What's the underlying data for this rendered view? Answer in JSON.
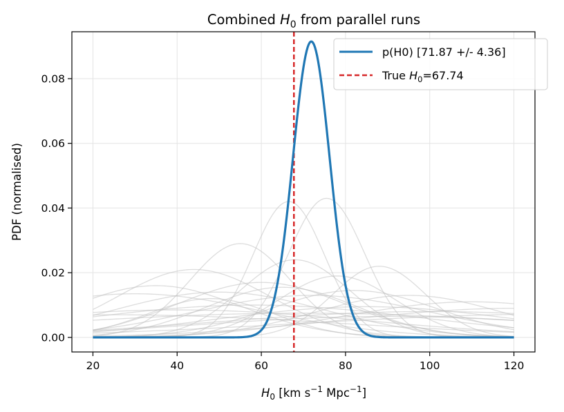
{
  "chart_data": {
    "type": "line",
    "title_main": "Combined ",
    "title_symbol": "H",
    "title_sub": "0",
    "title_rest": " from parallel runs",
    "xlabel": {
      "symbol": "H",
      "sub": "0",
      "unit_a": " [km s",
      "exp_a": "−1",
      "unit_b": " Mpc",
      "exp_b": "−1",
      "unit_c": "]"
    },
    "ylabel": "PDF (normalised)",
    "xlim": [
      15,
      125
    ],
    "ylim": [
      -0.0045,
      0.0945
    ],
    "x_ticks": [
      20,
      40,
      60,
      80,
      100,
      120
    ],
    "x_tick_labels": [
      "20",
      "40",
      "60",
      "80",
      "100",
      "120"
    ],
    "y_ticks": [
      0.0,
      0.02,
      0.04,
      0.06,
      0.08
    ],
    "y_tick_labels": [
      "0.00",
      "0.02",
      "0.04",
      "0.06",
      "0.08"
    ],
    "grid": true,
    "legend_position": "top-right",
    "combined": {
      "name": "p(H0) [71.87 +/- 4.36]",
      "mean": 71.87,
      "sigma": 4.36,
      "x_range": [
        20,
        120
      ],
      "color": "#1f77b4"
    },
    "truth": {
      "label_prefix": "True ",
      "label_symbol": "H",
      "label_sub": "0",
      "label_suffix": "=67.74",
      "value": 67.74,
      "color": "#d62728"
    },
    "runs_color": "#bfbfbf",
    "runs": [
      {
        "mu": 75.5,
        "sigma": 9.0,
        "amp": 0.043
      },
      {
        "mu": 66.5,
        "sigma": 8.5,
        "amp": 0.042
      },
      {
        "mu": 55.0,
        "sigma": 12.0,
        "amp": 0.029
      },
      {
        "mu": 44.0,
        "sigma": 18.0,
        "amp": 0.021
      },
      {
        "mu": 88.0,
        "sigma": 11.0,
        "amp": 0.022
      },
      {
        "mu": 78.0,
        "sigma": 14.0,
        "amp": 0.019
      },
      {
        "mu": 68.0,
        "sigma": 13.0,
        "amp": 0.024
      },
      {
        "mu": 60.0,
        "sigma": 20.0,
        "amp": 0.017
      },
      {
        "mu": 35.0,
        "sigma": 20.0,
        "amp": 0.016
      },
      {
        "mu": 95.0,
        "sigma": 22.0,
        "amp": 0.013
      },
      {
        "mu": 50.0,
        "sigma": 25.0,
        "amp": 0.014
      },
      {
        "mu": 72.0,
        "sigma": 28.0,
        "amp": 0.013
      },
      {
        "mu": 30.0,
        "sigma": 30.0,
        "amp": 0.0135
      },
      {
        "mu": 110.0,
        "sigma": 30.0,
        "amp": 0.011
      },
      {
        "mu": 85.0,
        "sigma": 35.0,
        "amp": 0.0095
      },
      {
        "mu": 58.0,
        "sigma": 40.0,
        "amp": 0.01
      },
      {
        "mu": 120.0,
        "sigma": 40.0,
        "amp": 0.009
      },
      {
        "mu": 40.0,
        "sigma": 45.0,
        "amp": 0.0085
      },
      {
        "mu": 100.0,
        "sigma": 50.0,
        "amp": 0.008
      },
      {
        "mu": 70.0,
        "sigma": 60.0,
        "amp": 0.0075
      },
      {
        "mu": 25.0,
        "sigma": 55.0,
        "amp": 0.007
      },
      {
        "mu": 130.0,
        "sigma": 60.0,
        "amp": 0.0072
      },
      {
        "mu": 65.0,
        "sigma": 18.0,
        "amp": 0.0155
      },
      {
        "mu": 82.0,
        "sigma": 20.0,
        "amp": 0.0145
      },
      {
        "mu": 48.0,
        "sigma": 15.0,
        "amp": 0.012
      },
      {
        "mu": 90.0,
        "sigma": 45.0,
        "amp": 0.0065
      }
    ]
  }
}
